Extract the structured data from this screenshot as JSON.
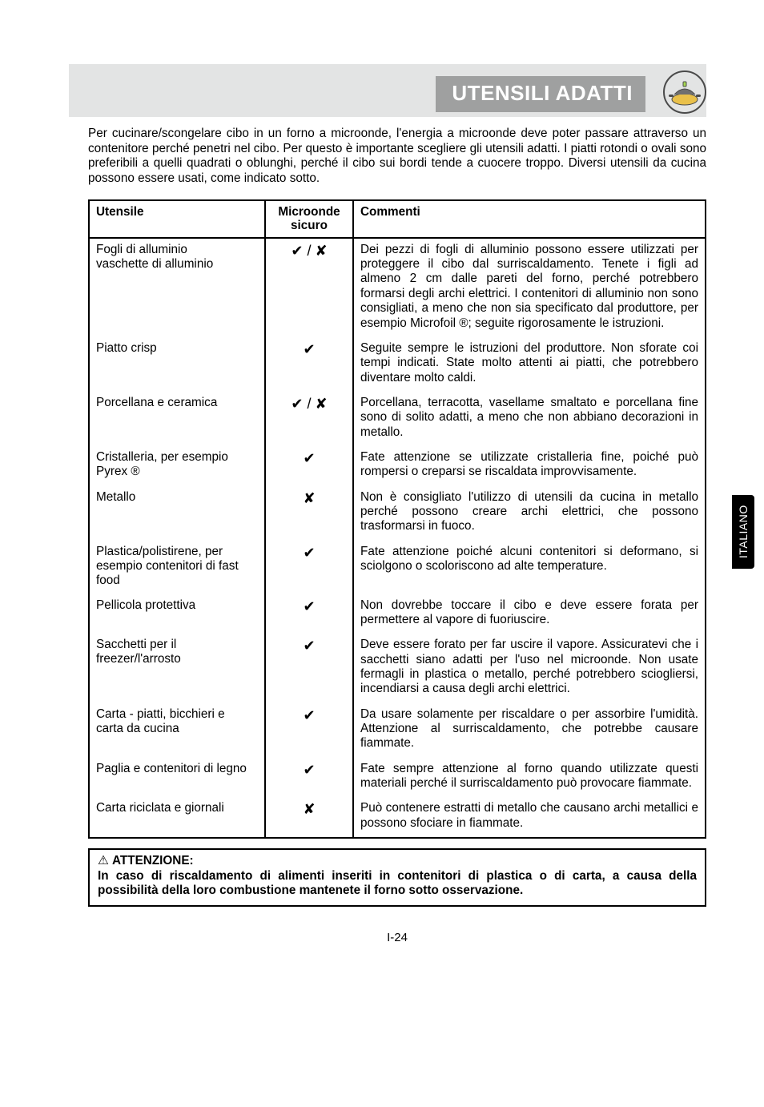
{
  "header": {
    "title": "UTENSILI ADATTI",
    "title_bg": "#9fa0a0",
    "title_fg": "#ffffff",
    "strip_bg": "#e3e4e4"
  },
  "side_tab": "ITALIANO",
  "intro": "Per cucinare/scongelare cibo in un forno a microonde, l'energia a microonde deve poter passare attraverso un contenitore perché penetri nel cibo. Per questo è importante scegliere gli utensili adatti. I piatti rotondi o ovali sono preferibili a quelli quadrati o oblunghi, perché il cibo sui bordi tende a cuocere troppo. Diversi utensili da cucina possono essere usati, come indicato sotto.",
  "table": {
    "headers": {
      "utensile": "Utensile",
      "sicuro": "Microonde sicuro",
      "commenti": "Commenti"
    },
    "rows": [
      {
        "u": "Fogli di alluminio\nvaschette di alluminio",
        "s": "✔ / ✘",
        "c": "Dei pezzi di fogli di alluminio possono essere utilizzati per proteggere il cibo dal surriscaldamento. Tenete i figli ad almeno 2 cm dalle pareti del forno, perché potrebbero formarsi degli archi elettrici. I contenitori di alluminio non sono consigliati, a meno che non sia specificato dal produttore, per esempio Microfoil ®; seguite rigorosamente le istruzioni."
      },
      {
        "u": "Piatto crisp",
        "s": "✔",
        "c": "Seguite sempre le istruzioni del produttore. Non sforate coi tempi indicati. State molto attenti ai piatti, che potrebbero diventare molto caldi."
      },
      {
        "u": "Porcellana e ceramica",
        "s": "✔ / ✘",
        "c": "Porcellana, terracotta, vasellame smaltato e porcellana fine sono di solito adatti, a meno che non abbiano decorazioni in metallo."
      },
      {
        "u": "Cristalleria, per esempio\nPyrex ®",
        "s": "✔",
        "c": "Fate attenzione se utilizzate cristalleria fine, poiché può rompersi o creparsi se riscaldata improvvisamente."
      },
      {
        "u": "Metallo",
        "s": "✘",
        "c": "Non è consigliato l'utilizzo di utensili da cucina in metallo perché possono creare archi elettrici, che possono trasformarsi in fuoco."
      },
      {
        "u": "Plastica/polistirene, per\nesempio contenitori di fast\nfood",
        "s": "✔",
        "c": "Fate attenzione poiché alcuni contenitori si deformano, si sciolgono o scoloriscono ad alte temperature."
      },
      {
        "u": "Pellicola protettiva",
        "s": "✔",
        "c": "Non dovrebbe toccare il cibo e deve essere forata per permettere al vapore di fuoriuscire."
      },
      {
        "u": "Sacchetti per il freezer/l'arrosto",
        "s": "✔",
        "c": "Deve essere forato per far uscire il vapore. Assicuratevi che i sacchetti siano adatti per l'uso nel microonde. Non usate fermagli in plastica o metallo, perché potrebbero sciogliersi, incendiarsi a causa degli archi elettrici."
      },
      {
        "u": "Carta - piatti, bicchieri e\ncarta da cucina",
        "s": "✔",
        "c": "Da usare solamente per riscaldare o per assorbire l'umidità. Attenzione al surriscaldamento, che potrebbe causare fiammate."
      },
      {
        "u": "Paglia e contenitori di legno",
        "s": "✔",
        "c": "Fate sempre attenzione al forno quando utilizzate questi materiali perché il surriscaldamento può provocare fiammate."
      },
      {
        "u": "Carta riciclata e giornali",
        "s": "✘",
        "c": "Può contenere estratti di metallo che causano archi metallici e possono sfociare in fiammate."
      }
    ]
  },
  "warning": {
    "head": "ATTENZIONE:",
    "body": "In caso di riscaldamento di alimenti inseriti in contenitori di plastica o di carta, a causa della possibilità della loro combustione mantenete il forno sotto osservazione."
  },
  "page_number": "I-24",
  "icon_colors": {
    "outer": "#4a4a4a",
    "plate": "#e9c04a",
    "handle": "#a5d84f",
    "lid": "#6f6f6f"
  }
}
